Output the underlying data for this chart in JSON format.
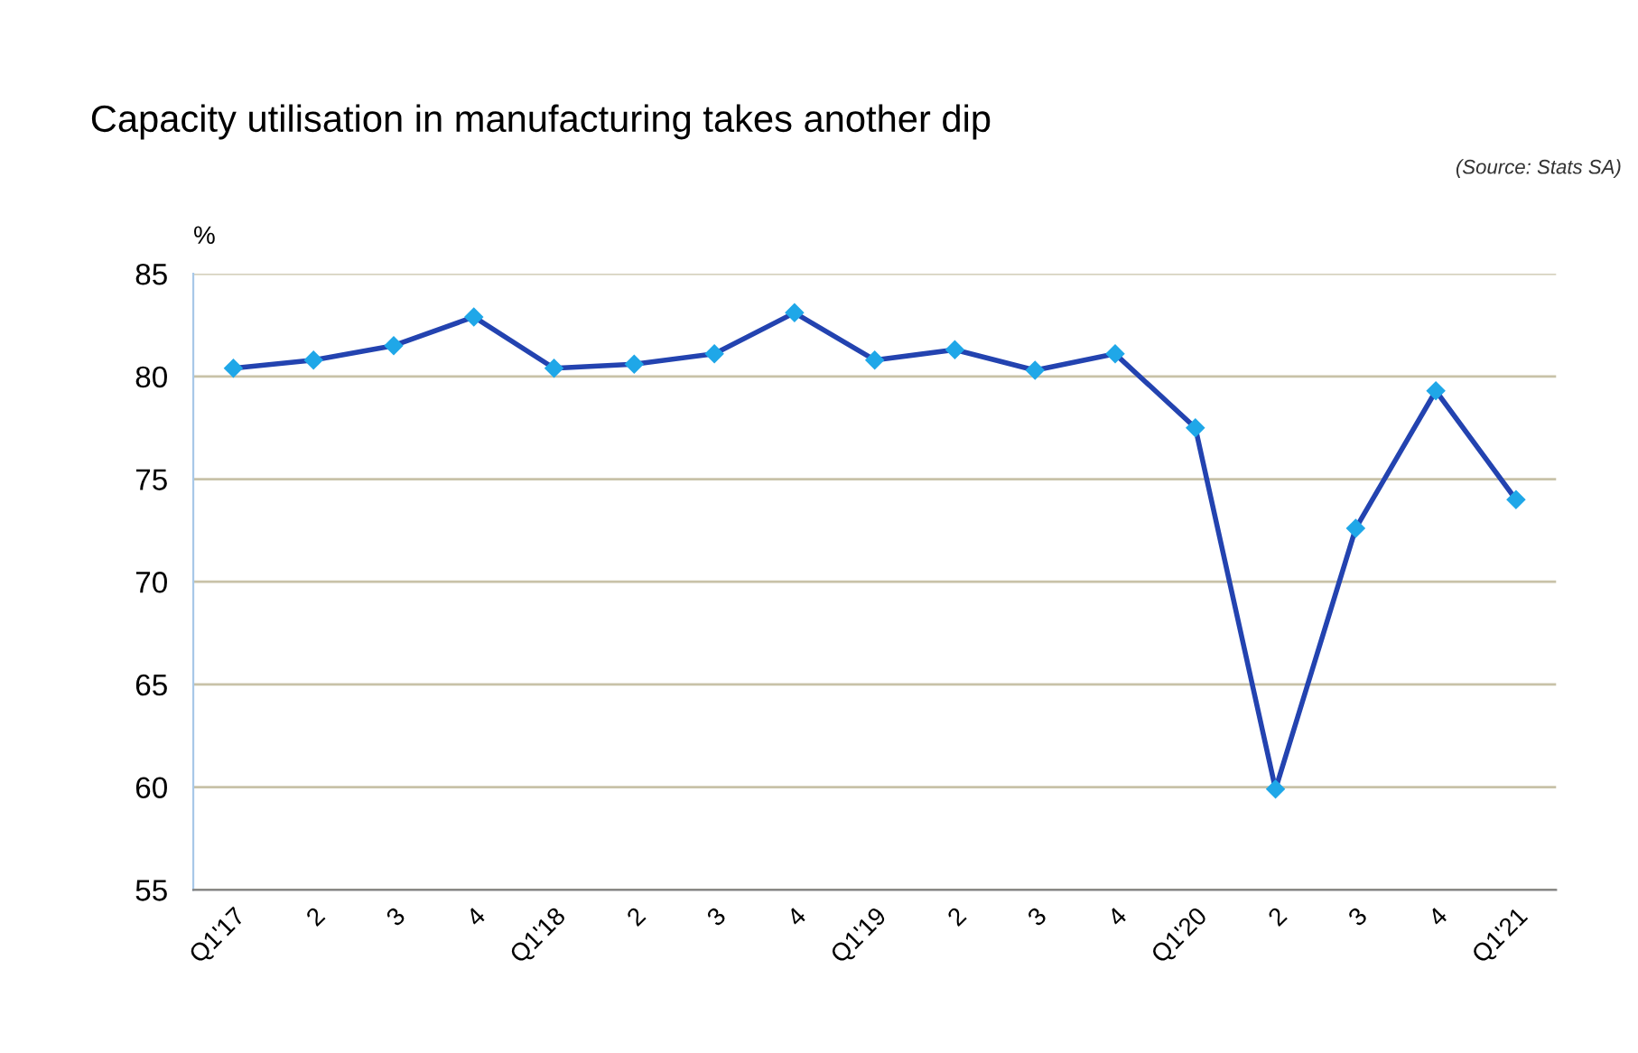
{
  "chart_data": {
    "type": "line",
    "title": "Capacity utilisation in manufacturing takes another dip",
    "ylabel": "%",
    "annotations": [
      "(Source: Stats SA)"
    ],
    "categories": [
      "Q1'17",
      "2",
      "3",
      "4",
      "Q1'18",
      "2",
      "3",
      "4",
      "Q1'19",
      "2",
      "3",
      "4",
      "Q1'20",
      "2",
      "3",
      "4",
      "Q1'21"
    ],
    "series": [
      {
        "color": "#2343b0",
        "colors": [
          "#1fa7e8",
          "#1fa7e8",
          "#1fa7e8",
          "#1fa7e8",
          "#1fa7e8",
          "#1fa7e8",
          "#1fa7e8",
          "#1fa7e8",
          "#1fa7e8",
          "#1fa7e8",
          "#1fa7e8",
          "#1fa7e8",
          "#1fa7e8",
          "#1fa7e8",
          "#1fa7e8",
          "#1fa7e8",
          "#1fa7e8"
        ],
        "values": [
          80.4,
          80.8,
          81.5,
          82.9,
          80.4,
          80.6,
          81.1,
          83.1,
          80.8,
          81.3,
          80.3,
          81.1,
          77.5,
          59.9,
          72.6,
          79.3,
          74.0
        ]
      }
    ],
    "ylim": [
      55,
      85
    ],
    "yticks": [
      55,
      60,
      65,
      70,
      75,
      80,
      85
    ],
    "grid": "y",
    "marker": "diamond",
    "line_style": "solid",
    "legend": false
  }
}
